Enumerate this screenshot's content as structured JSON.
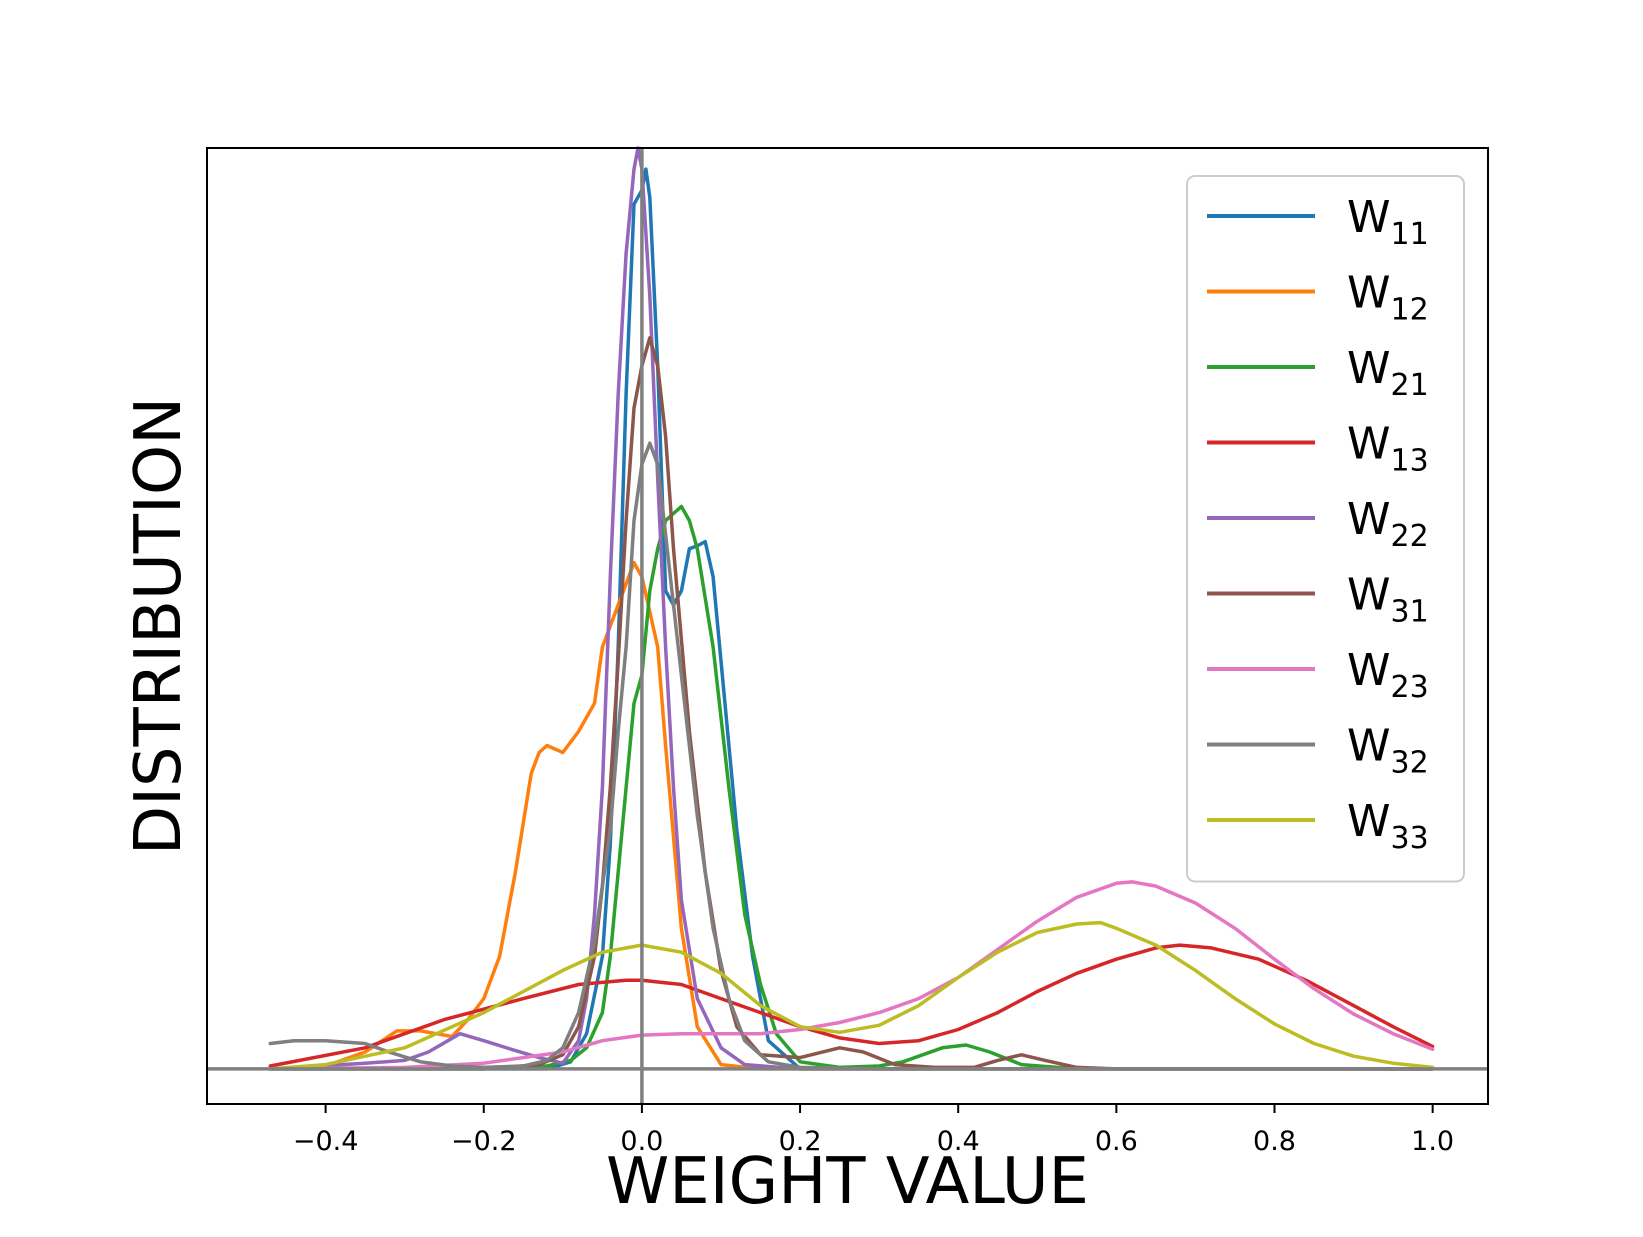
{
  "chart_data": {
    "type": "line",
    "title": "",
    "xlabel": "WEIGHT VALUE",
    "ylabel": "DISTRIBUTION",
    "xlim": [
      -0.55,
      1.07
    ],
    "ylim": [
      -0.025,
      0.655
    ],
    "xticks": [
      -0.4,
      -0.2,
      0.0,
      0.2,
      0.4,
      0.6,
      0.8,
      1.0
    ],
    "xtick_labels": [
      "−0.4",
      "−0.2",
      "0.0",
      "0.2",
      "0.4",
      "0.6",
      "0.8",
      "1.0"
    ],
    "yticks": [],
    "grid": false,
    "reference_lines": {
      "vertical_x": 0.0,
      "horizontal_y": 0.0,
      "color": "#808080"
    },
    "legend_position": "upper right",
    "series": [
      {
        "name": "W11",
        "main": "W",
        "sub": "11",
        "color": "#1f77b4",
        "points": [
          [
            -0.47,
            0.0
          ],
          [
            -0.2,
            0.0
          ],
          [
            -0.12,
            0.0
          ],
          [
            -0.09,
            0.005
          ],
          [
            -0.07,
            0.025
          ],
          [
            -0.05,
            0.08
          ],
          [
            -0.04,
            0.16
          ],
          [
            -0.03,
            0.3
          ],
          [
            -0.02,
            0.48
          ],
          [
            -0.01,
            0.615
          ],
          [
            0.0,
            0.625
          ],
          [
            0.005,
            0.64
          ],
          [
            0.01,
            0.62
          ],
          [
            0.02,
            0.5
          ],
          [
            0.03,
            0.34
          ],
          [
            0.04,
            0.33
          ],
          [
            0.05,
            0.34
          ],
          [
            0.06,
            0.37
          ],
          [
            0.07,
            0.372
          ],
          [
            0.08,
            0.375
          ],
          [
            0.09,
            0.35
          ],
          [
            0.1,
            0.29
          ],
          [
            0.12,
            0.17
          ],
          [
            0.14,
            0.08
          ],
          [
            0.16,
            0.02
          ],
          [
            0.2,
            0.0
          ],
          [
            1.0,
            0.0
          ]
        ]
      },
      {
        "name": "W12",
        "main": "W",
        "sub": "12",
        "color": "#ff7f0e",
        "points": [
          [
            -0.47,
            0.0
          ],
          [
            -0.4,
            0.002
          ],
          [
            -0.35,
            0.012
          ],
          [
            -0.31,
            0.027
          ],
          [
            -0.28,
            0.027
          ],
          [
            -0.26,
            0.025
          ],
          [
            -0.24,
            0.023
          ],
          [
            -0.22,
            0.035
          ],
          [
            -0.2,
            0.05
          ],
          [
            -0.18,
            0.08
          ],
          [
            -0.16,
            0.14
          ],
          [
            -0.14,
            0.21
          ],
          [
            -0.13,
            0.225
          ],
          [
            -0.12,
            0.23
          ],
          [
            -0.1,
            0.225
          ],
          [
            -0.08,
            0.24
          ],
          [
            -0.06,
            0.26
          ],
          [
            -0.05,
            0.3
          ],
          [
            -0.03,
            0.33
          ],
          [
            -0.01,
            0.36
          ],
          [
            0.0,
            0.35
          ],
          [
            0.02,
            0.3
          ],
          [
            0.03,
            0.23
          ],
          [
            0.05,
            0.1
          ],
          [
            0.07,
            0.03
          ],
          [
            0.1,
            0.003
          ],
          [
            0.15,
            0.0
          ],
          [
            1.0,
            0.0
          ]
        ]
      },
      {
        "name": "W21",
        "main": "W",
        "sub": "21",
        "color": "#2ca02c",
        "points": [
          [
            -0.47,
            0.0
          ],
          [
            -0.2,
            0.0
          ],
          [
            -0.12,
            0.002
          ],
          [
            -0.09,
            0.006
          ],
          [
            -0.07,
            0.015
          ],
          [
            -0.05,
            0.04
          ],
          [
            -0.04,
            0.08
          ],
          [
            -0.02,
            0.2
          ],
          [
            -0.01,
            0.26
          ],
          [
            0.0,
            0.28
          ],
          [
            0.01,
            0.34
          ],
          [
            0.02,
            0.37
          ],
          [
            0.03,
            0.39
          ],
          [
            0.04,
            0.395
          ],
          [
            0.05,
            0.4
          ],
          [
            0.06,
            0.39
          ],
          [
            0.07,
            0.37
          ],
          [
            0.09,
            0.3
          ],
          [
            0.11,
            0.2
          ],
          [
            0.13,
            0.11
          ],
          [
            0.15,
            0.06
          ],
          [
            0.17,
            0.025
          ],
          [
            0.2,
            0.005
          ],
          [
            0.25,
            0.001
          ],
          [
            0.3,
            0.002
          ],
          [
            0.33,
            0.005
          ],
          [
            0.38,
            0.015
          ],
          [
            0.41,
            0.017
          ],
          [
            0.44,
            0.012
          ],
          [
            0.48,
            0.003
          ],
          [
            0.55,
            0.0
          ],
          [
            1.0,
            0.0
          ]
        ]
      },
      {
        "name": "W13",
        "main": "W",
        "sub": "13",
        "color": "#d62728",
        "points": [
          [
            -0.47,
            0.002
          ],
          [
            -0.35,
            0.015
          ],
          [
            -0.25,
            0.035
          ],
          [
            -0.15,
            0.05
          ],
          [
            -0.08,
            0.06
          ],
          [
            -0.02,
            0.063
          ],
          [
            0.0,
            0.063
          ],
          [
            0.05,
            0.06
          ],
          [
            0.1,
            0.05
          ],
          [
            0.15,
            0.04
          ],
          [
            0.2,
            0.03
          ],
          [
            0.25,
            0.022
          ],
          [
            0.3,
            0.018
          ],
          [
            0.35,
            0.02
          ],
          [
            0.4,
            0.028
          ],
          [
            0.45,
            0.04
          ],
          [
            0.5,
            0.055
          ],
          [
            0.55,
            0.068
          ],
          [
            0.6,
            0.078
          ],
          [
            0.65,
            0.086
          ],
          [
            0.68,
            0.088
          ],
          [
            0.72,
            0.086
          ],
          [
            0.78,
            0.078
          ],
          [
            0.84,
            0.063
          ],
          [
            0.9,
            0.045
          ],
          [
            0.95,
            0.03
          ],
          [
            1.0,
            0.016
          ]
        ]
      },
      {
        "name": "W22",
        "main": "W",
        "sub": "22",
        "color": "#9467bd",
        "points": [
          [
            -0.47,
            0.0
          ],
          [
            -0.35,
            0.004
          ],
          [
            -0.3,
            0.006
          ],
          [
            -0.27,
            0.012
          ],
          [
            -0.23,
            0.025
          ],
          [
            -0.2,
            0.02
          ],
          [
            -0.16,
            0.013
          ],
          [
            -0.13,
            0.008
          ],
          [
            -0.1,
            0.004
          ],
          [
            -0.08,
            0.02
          ],
          [
            -0.07,
            0.05
          ],
          [
            -0.06,
            0.11
          ],
          [
            -0.05,
            0.2
          ],
          [
            -0.04,
            0.35
          ],
          [
            -0.03,
            0.48
          ],
          [
            -0.02,
            0.58
          ],
          [
            -0.01,
            0.64
          ],
          [
            -0.005,
            0.655
          ],
          [
            0.0,
            0.64
          ],
          [
            0.01,
            0.55
          ],
          [
            0.02,
            0.42
          ],
          [
            0.03,
            0.3
          ],
          [
            0.04,
            0.2
          ],
          [
            0.05,
            0.12
          ],
          [
            0.07,
            0.05
          ],
          [
            0.1,
            0.015
          ],
          [
            0.13,
            0.003
          ],
          [
            0.2,
            0.0
          ],
          [
            1.0,
            0.0
          ]
        ]
      },
      {
        "name": "W31",
        "main": "W",
        "sub": "31",
        "color": "#8c564b",
        "points": [
          [
            -0.47,
            0.0
          ],
          [
            -0.2,
            0.0
          ],
          [
            -0.13,
            0.003
          ],
          [
            -0.1,
            0.01
          ],
          [
            -0.08,
            0.03
          ],
          [
            -0.06,
            0.08
          ],
          [
            -0.05,
            0.13
          ],
          [
            -0.04,
            0.2
          ],
          [
            -0.03,
            0.29
          ],
          [
            -0.02,
            0.39
          ],
          [
            -0.01,
            0.47
          ],
          [
            0.0,
            0.5
          ],
          [
            0.01,
            0.52
          ],
          [
            0.02,
            0.5
          ],
          [
            0.03,
            0.45
          ],
          [
            0.04,
            0.37
          ],
          [
            0.06,
            0.24
          ],
          [
            0.08,
            0.14
          ],
          [
            0.1,
            0.07
          ],
          [
            0.12,
            0.03
          ],
          [
            0.15,
            0.01
          ],
          [
            0.2,
            0.008
          ],
          [
            0.25,
            0.015
          ],
          [
            0.28,
            0.012
          ],
          [
            0.32,
            0.003
          ],
          [
            0.37,
            0.001
          ],
          [
            0.42,
            0.001
          ],
          [
            0.45,
            0.006
          ],
          [
            0.48,
            0.01
          ],
          [
            0.51,
            0.006
          ],
          [
            0.55,
            0.001
          ],
          [
            0.6,
            0.0
          ],
          [
            1.0,
            0.0
          ]
        ]
      },
      {
        "name": "W23",
        "main": "W",
        "sub": "23",
        "color": "#e377c2",
        "points": [
          [
            -0.47,
            0.0
          ],
          [
            -0.3,
            0.001
          ],
          [
            -0.2,
            0.004
          ],
          [
            -0.1,
            0.012
          ],
          [
            -0.05,
            0.02
          ],
          [
            0.0,
            0.024
          ],
          [
            0.05,
            0.025
          ],
          [
            0.1,
            0.025
          ],
          [
            0.15,
            0.025
          ],
          [
            0.2,
            0.028
          ],
          [
            0.25,
            0.033
          ],
          [
            0.3,
            0.04
          ],
          [
            0.35,
            0.05
          ],
          [
            0.4,
            0.065
          ],
          [
            0.45,
            0.085
          ],
          [
            0.5,
            0.105
          ],
          [
            0.55,
            0.122
          ],
          [
            0.6,
            0.132
          ],
          [
            0.62,
            0.133
          ],
          [
            0.65,
            0.13
          ],
          [
            0.7,
            0.118
          ],
          [
            0.75,
            0.1
          ],
          [
            0.8,
            0.078
          ],
          [
            0.85,
            0.057
          ],
          [
            0.9,
            0.039
          ],
          [
            0.95,
            0.025
          ],
          [
            1.0,
            0.014
          ]
        ]
      },
      {
        "name": "W32",
        "main": "W",
        "sub": "32",
        "color": "#7f7f7f",
        "points": [
          [
            -0.47,
            0.018
          ],
          [
            -0.44,
            0.02
          ],
          [
            -0.4,
            0.02
          ],
          [
            -0.35,
            0.018
          ],
          [
            -0.32,
            0.012
          ],
          [
            -0.28,
            0.005
          ],
          [
            -0.24,
            0.002
          ],
          [
            -0.2,
            0.001
          ],
          [
            -0.15,
            0.002
          ],
          [
            -0.12,
            0.006
          ],
          [
            -0.1,
            0.015
          ],
          [
            -0.08,
            0.04
          ],
          [
            -0.06,
            0.09
          ],
          [
            -0.04,
            0.17
          ],
          [
            -0.03,
            0.24
          ],
          [
            -0.02,
            0.3
          ],
          [
            -0.01,
            0.39
          ],
          [
            0.0,
            0.43
          ],
          [
            0.01,
            0.445
          ],
          [
            0.02,
            0.43
          ],
          [
            0.03,
            0.38
          ],
          [
            0.05,
            0.28
          ],
          [
            0.07,
            0.18
          ],
          [
            0.09,
            0.1
          ],
          [
            0.11,
            0.05
          ],
          [
            0.13,
            0.02
          ],
          [
            0.16,
            0.005
          ],
          [
            0.2,
            0.001
          ],
          [
            0.3,
            0.0
          ],
          [
            1.0,
            0.0
          ]
        ]
      },
      {
        "name": "W33",
        "main": "W",
        "sub": "33",
        "color": "#bcbd22",
        "points": [
          [
            -0.47,
            0.0
          ],
          [
            -0.4,
            0.003
          ],
          [
            -0.3,
            0.015
          ],
          [
            -0.2,
            0.04
          ],
          [
            -0.1,
            0.07
          ],
          [
            -0.05,
            0.083
          ],
          [
            0.0,
            0.088
          ],
          [
            0.05,
            0.083
          ],
          [
            0.1,
            0.068
          ],
          [
            0.15,
            0.045
          ],
          [
            0.2,
            0.03
          ],
          [
            0.25,
            0.026
          ],
          [
            0.3,
            0.031
          ],
          [
            0.35,
            0.045
          ],
          [
            0.4,
            0.065
          ],
          [
            0.45,
            0.083
          ],
          [
            0.5,
            0.097
          ],
          [
            0.55,
            0.103
          ],
          [
            0.58,
            0.104
          ],
          [
            0.6,
            0.1
          ],
          [
            0.65,
            0.088
          ],
          [
            0.7,
            0.07
          ],
          [
            0.75,
            0.05
          ],
          [
            0.8,
            0.032
          ],
          [
            0.85,
            0.018
          ],
          [
            0.9,
            0.009
          ],
          [
            0.95,
            0.004
          ],
          [
            1.0,
            0.001
          ]
        ]
      }
    ]
  }
}
